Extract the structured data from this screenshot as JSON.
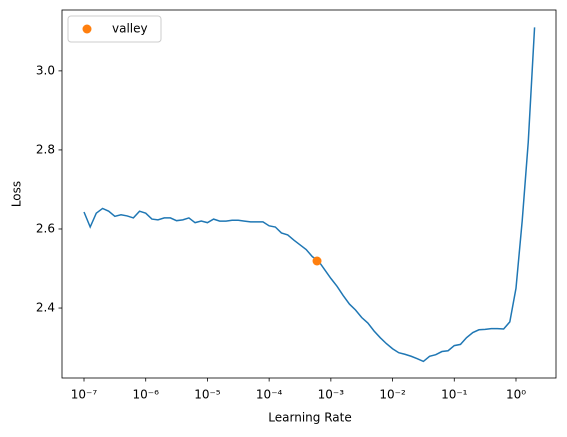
{
  "chart_data": {
    "type": "line",
    "xlabel": "Learning Rate",
    "ylabel": "Loss",
    "xscale": "log",
    "xlim": [
      4.4e-08,
      4.45
    ],
    "ylim": [
      2.223,
      3.154
    ],
    "xticks": [
      {
        "value": 1e-07,
        "label": "10⁻⁷"
      },
      {
        "value": 1e-06,
        "label": "10⁻⁶"
      },
      {
        "value": 1e-05,
        "label": "10⁻⁵"
      },
      {
        "value": 0.0001,
        "label": "10⁻⁴"
      },
      {
        "value": 0.001,
        "label": "10⁻³"
      },
      {
        "value": 0.01,
        "label": "10⁻²"
      },
      {
        "value": 0.1,
        "label": "10⁻¹"
      },
      {
        "value": 1,
        "label": "10⁰"
      }
    ],
    "yticks": [
      2.4,
      2.6,
      2.8,
      {
        "value": 3,
        "label": "3.0"
      }
    ],
    "x": [
      1e-07,
      1.26e-07,
      1.58e-07,
      2e-07,
      2.51e-07,
      3.16e-07,
      3.98e-07,
      5.01e-07,
      6.31e-07,
      7.94e-07,
      1e-06,
      1.26e-06,
      1.58e-06,
      2e-06,
      2.51e-06,
      3.16e-06,
      3.98e-06,
      5.01e-06,
      6.31e-06,
      7.94e-06,
      1e-05,
      1.26e-05,
      1.58e-05,
      2e-05,
      2.51e-05,
      3.16e-05,
      3.98e-05,
      5.01e-05,
      6.31e-05,
      7.94e-05,
      0.0001,
      0.000126,
      0.000158,
      0.0002,
      0.000251,
      0.000316,
      0.000398,
      0.000501,
      0.000631,
      0.000794,
      0.001,
      0.00126,
      0.00158,
      0.002,
      0.00251,
      0.00316,
      0.00398,
      0.00501,
      0.00631,
      0.00794,
      0.01,
      0.0126,
      0.0158,
      0.02,
      0.0251,
      0.0316,
      0.0398,
      0.0501,
      0.0631,
      0.0794,
      0.1,
      0.126,
      0.158,
      0.2,
      0.251,
      0.316,
      0.398,
      0.501,
      0.631,
      0.794,
      1,
      1.26,
      1.58,
      2
    ],
    "series": [
      {
        "color": "#1f77b4",
        "values": [
          2.643,
          2.605,
          2.64,
          2.652,
          2.645,
          2.632,
          2.636,
          2.633,
          2.628,
          2.645,
          2.64,
          2.625,
          2.623,
          2.628,
          2.628,
          2.621,
          2.623,
          2.628,
          2.616,
          2.62,
          2.616,
          2.625,
          2.62,
          2.62,
          2.622,
          2.622,
          2.62,
          2.618,
          2.618,
          2.618,
          2.608,
          2.605,
          2.59,
          2.585,
          2.572,
          2.56,
          2.548,
          2.53,
          2.519,
          2.497,
          2.475,
          2.455,
          2.432,
          2.41,
          2.395,
          2.376,
          2.362,
          2.342,
          2.325,
          2.31,
          2.297,
          2.287,
          2.283,
          2.278,
          2.272,
          2.265,
          2.278,
          2.282,
          2.29,
          2.292,
          2.305,
          2.308,
          2.325,
          2.338,
          2.345,
          2.346,
          2.348,
          2.348,
          2.347,
          2.365,
          2.45,
          2.62,
          2.82,
          3.11
        ]
      }
    ],
    "marker": {
      "name": "valley",
      "color": "#ff7f0e",
      "x": [
        0.000597
      ],
      "values": [
        2.519
      ]
    },
    "legend": "upper left"
  }
}
